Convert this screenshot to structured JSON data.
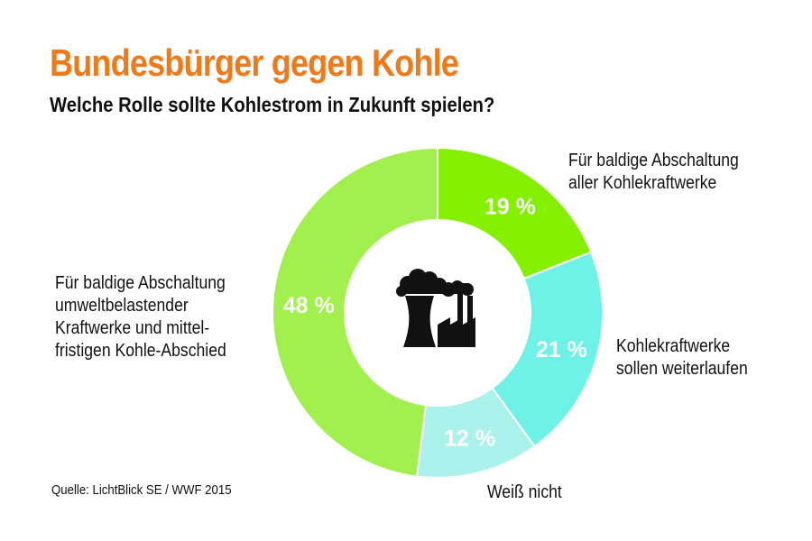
{
  "chart_data": {
    "type": "pie",
    "title": "Bundesbürger gegen Kohle",
    "subtitle": "Welche Rolle sollte Kohlestrom in Zukunft spielen?",
    "slices": [
      {
        "label_lines": [
          "Für baldige Abschaltung",
          "aller Kohlekraftwerke"
        ],
        "value": 19,
        "value_label": "19 %",
        "color": "#84f000"
      },
      {
        "label_lines": [
          "Kohlekraftwerke",
          "sollen weiterlaufen"
        ],
        "value": 21,
        "value_label": "21 %",
        "color": "#6ef2e8"
      },
      {
        "label_lines": [
          "Weiß nicht"
        ],
        "value": 12,
        "value_label": "12 %",
        "color": "#abf2ec"
      },
      {
        "label_lines": [
          "Für baldige Abschaltung",
          "umweltbelastender",
          "Kraftwerke und mittel-",
          "fristigen Kohle-Abschied"
        ],
        "value": 48,
        "value_label": "48 %",
        "color": "#a2f04e"
      }
    ],
    "center_icon": "factory-icon",
    "source": "Quelle: LichtBlick SE / WWF 2015"
  },
  "colors": {
    "title": "#f07a1a",
    "text": "#111111"
  }
}
